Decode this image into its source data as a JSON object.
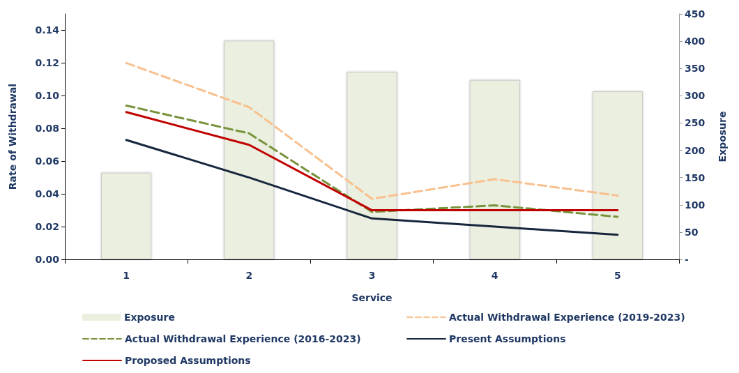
{
  "chart_data": {
    "type": "bar",
    "xlabel": "Service",
    "ylabel": "Rate of Withdrawal",
    "y2label": "Exposure",
    "categories": [
      "1",
      "2",
      "3",
      "4",
      "5"
    ],
    "series": [
      {
        "name": "Exposure",
        "axis": "y2",
        "color": "#ebefdf",
        "values": [
          159,
          401,
          344,
          329,
          308
        ]
      },
      {
        "name": "Actual Withdrawal Experience (2019-2023)",
        "type": "line",
        "line_style": "dashed",
        "color": "#f9c08f",
        "values": [
          0.12,
          0.093,
          0.037,
          0.049,
          0.039
        ]
      },
      {
        "name": "Actual Withdrawal Experience (2016-2023)",
        "type": "line",
        "line_style": "dashed",
        "color": "#77933c",
        "values": [
          0.094,
          0.077,
          0.029,
          0.033,
          0.026
        ]
      },
      {
        "name": "Present Assumptions",
        "type": "line",
        "line_style": "solid",
        "color": "#17263d",
        "values": [
          0.073,
          0.05,
          0.025,
          0.02,
          0.015
        ]
      },
      {
        "name": "Proposed Assumptions",
        "type": "line",
        "line_style": "solid",
        "color": "#c00000",
        "values": [
          0.09,
          0.07,
          0.03,
          0.03,
          0.03
        ]
      }
    ],
    "ylim": [
      0,
      0.15
    ],
    "yticks": [
      {
        "value": 0,
        "label": "0.00"
      },
      {
        "value": 0.02,
        "label": "0.02"
      },
      {
        "value": 0.04,
        "label": "0.04"
      },
      {
        "value": 0.06,
        "label": "0.06"
      },
      {
        "value": 0.08,
        "label": "0.08"
      },
      {
        "value": 0.1,
        "label": "0.10"
      },
      {
        "value": 0.12,
        "label": "0.12"
      },
      {
        "value": 0.14,
        "label": "0.14"
      }
    ],
    "y2lim": [
      0,
      450
    ],
    "y2ticks": [
      {
        "value": 0,
        "label": "-"
      },
      50,
      100,
      150,
      200,
      250,
      300,
      350,
      400,
      450
    ],
    "grid": false,
    "legend": "bottom",
    "marker": "none"
  }
}
